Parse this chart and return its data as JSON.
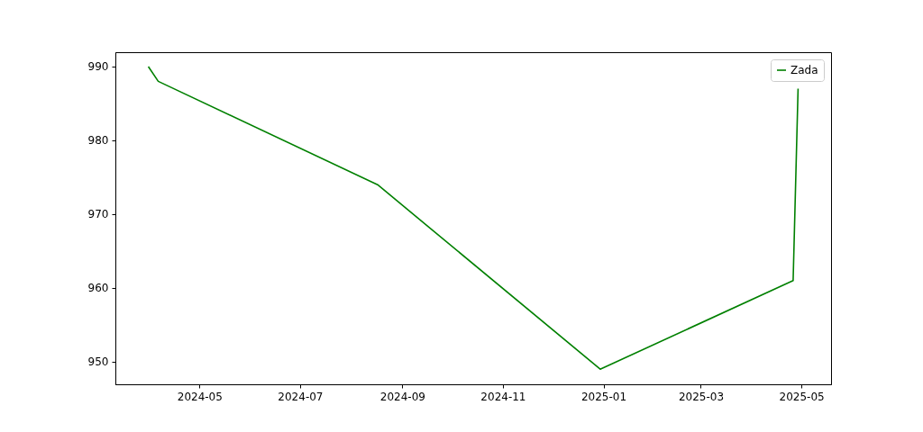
{
  "chart_data": {
    "type": "line",
    "x": [
      "2024-03-31",
      "2024-04-06",
      "2024-08-17",
      "2024-12-30",
      "2025-04-26",
      "2025-04-29"
    ],
    "series": [
      {
        "name": "Zada",
        "color": "#008000",
        "values": [
          990,
          988,
          974,
          949,
          961,
          987
        ]
      }
    ],
    "xlim": [
      "2024-03-11",
      "2025-05-19"
    ],
    "xticks": [
      {
        "value": "2024-05-01",
        "label": "2024-05"
      },
      {
        "value": "2024-07-01",
        "label": "2024-07"
      },
      {
        "value": "2024-09-01",
        "label": "2024-09"
      },
      {
        "value": "2024-11-01",
        "label": "2024-11"
      },
      {
        "value": "2025-01-01",
        "label": "2025-01"
      },
      {
        "value": "2025-03-01",
        "label": "2025-03"
      },
      {
        "value": "2025-05-01",
        "label": "2025-05"
      }
    ],
    "ylim": [
      946.95,
      991.95
    ],
    "yticks": [
      950,
      960,
      970,
      980,
      990
    ],
    "grid": false,
    "legend": "top right",
    "marker": "none",
    "line_style": "solid"
  }
}
